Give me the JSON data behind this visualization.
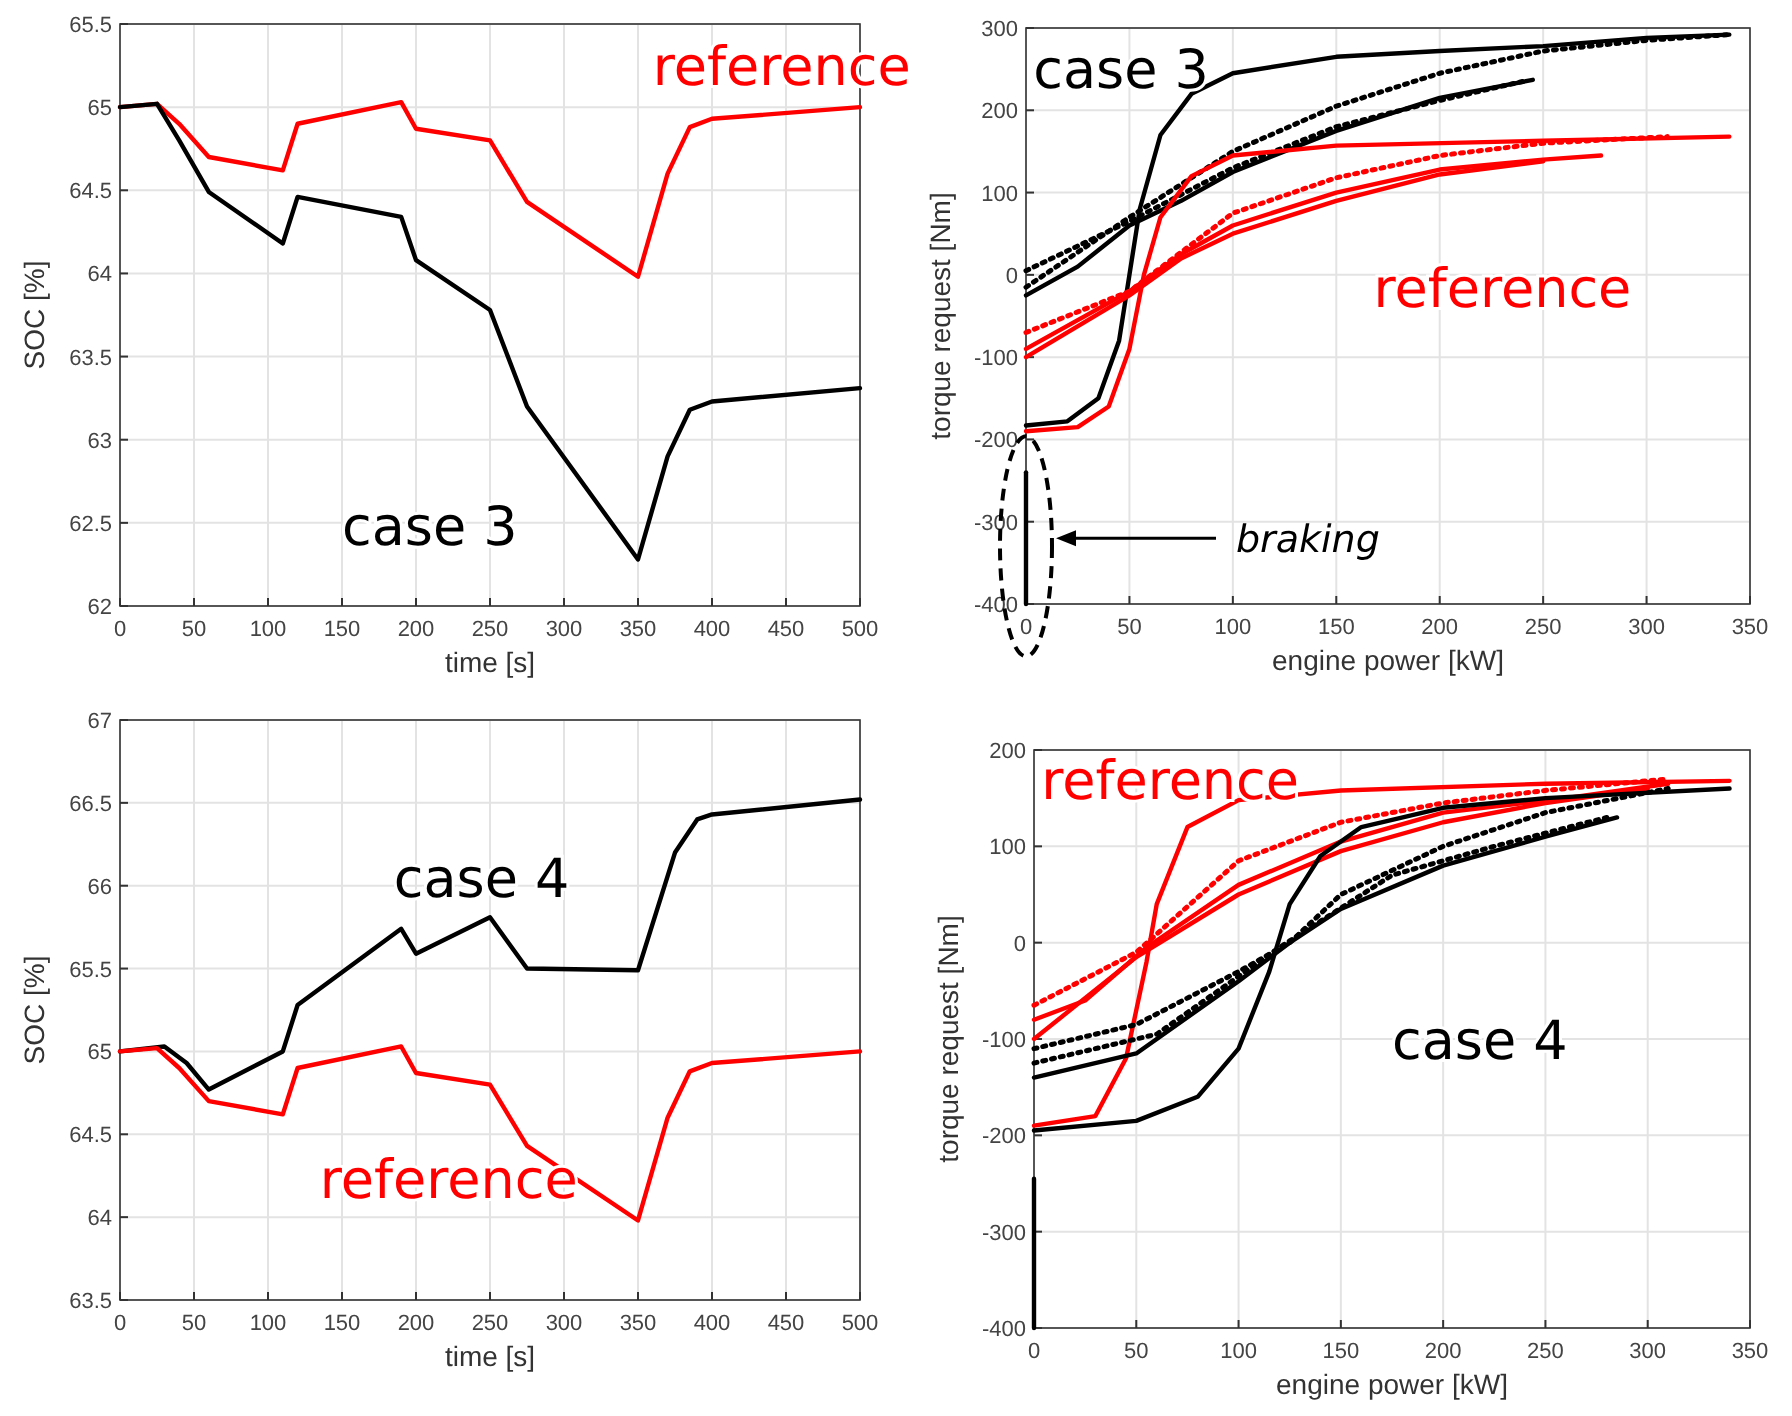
{
  "chart_data": [
    {
      "type": "line",
      "xlabel": "time [s]",
      "ylabel": "SOC [%]",
      "xlim": [
        0,
        500
      ],
      "xticks": [
        0,
        50,
        100,
        150,
        200,
        250,
        300,
        350,
        400,
        450,
        500
      ],
      "ylim": [
        62,
        65.5
      ],
      "yticks": [
        62,
        62.5,
        63,
        63.5,
        64,
        64.5,
        65,
        65.5
      ],
      "grid": true,
      "x": [
        0,
        25,
        40,
        60,
        110,
        120,
        190,
        200,
        250,
        275,
        350,
        370,
        385,
        400,
        500
      ],
      "series": [
        {
          "name": "reference",
          "color": "#ff0000",
          "values": [
            65,
            65.02,
            64.9,
            64.7,
            64.62,
            64.9,
            65.03,
            64.87,
            64.8,
            64.43,
            63.98,
            64.6,
            64.88,
            64.93,
            65
          ]
        },
        {
          "name": "case 3",
          "color": "#000000",
          "values": [
            65,
            65.02,
            64.8,
            64.49,
            64.18,
            64.46,
            64.34,
            64.08,
            63.78,
            63.2,
            62.28,
            62.9,
            63.18,
            63.23,
            63.31
          ]
        }
      ]
    },
    {
      "type": "line",
      "xlabel": "engine power [kW]",
      "ylabel": "torque request [Nm]",
      "xlim": [
        0,
        350
      ],
      "xticks": [
        0,
        50,
        100,
        150,
        200,
        250,
        300,
        350
      ],
      "ylim": [
        -400,
        300
      ],
      "yticks": [
        -400,
        -300,
        -200,
        -100,
        0,
        100,
        200,
        300
      ],
      "grid": true,
      "annotations": [
        "braking"
      ],
      "series": [
        {
          "name": "case 3",
          "color": "#000000",
          "x": [
            0,
            20,
            35,
            45,
            50,
            55,
            65,
            80,
            100,
            150,
            200,
            250,
            300,
            340
          ],
          "values": [
            -183,
            -178,
            -150,
            -80,
            0,
            80,
            170,
            220,
            245,
            265,
            272,
            278,
            288,
            292
          ]
        },
        {
          "color": "#000000",
          "x": [
            0,
            25,
            50,
            75,
            100,
            150,
            200,
            245
          ],
          "values": [
            -25,
            10,
            60,
            90,
            125,
            175,
            215,
            237
          ]
        },
        {
          "color": "#000000",
          "line_style": "dotted",
          "x": [
            0,
            50,
            100,
            150,
            200,
            250,
            300,
            340
          ],
          "values": [
            -15,
            70,
            150,
            205,
            245,
            272,
            285,
            292
          ]
        },
        {
          "color": "#000000",
          "line_style": "dotted",
          "x": [
            0,
            50,
            100,
            150,
            200,
            240
          ],
          "values": [
            5,
            65,
            130,
            180,
            212,
            235
          ]
        },
        {
          "color": "#000000",
          "x": [
            0,
            0
          ],
          "values": [
            -240,
            -400
          ]
        },
        {
          "name": "reference",
          "color": "#ff0000",
          "x": [
            0,
            25,
            40,
            50,
            57,
            65,
            80,
            100,
            150,
            250,
            340
          ],
          "values": [
            -190,
            -185,
            -160,
            -90,
            0,
            70,
            120,
            145,
            157,
            163,
            168
          ]
        },
        {
          "color": "#ff0000",
          "x": [
            0,
            25,
            50,
            75,
            100,
            150,
            200,
            250,
            278
          ],
          "values": [
            -90,
            -55,
            -20,
            25,
            60,
            100,
            128,
            140,
            145
          ]
        },
        {
          "color": "#ff0000",
          "line_style": "dotted",
          "x": [
            0,
            50,
            100,
            150,
            200,
            250,
            310
          ],
          "values": [
            -70,
            -20,
            75,
            118,
            145,
            160,
            168
          ]
        },
        {
          "color": "#ff0000",
          "x": [
            0,
            50,
            75,
            100,
            150,
            200,
            250
          ],
          "values": [
            -100,
            -25,
            20,
            50,
            90,
            122,
            138
          ]
        }
      ]
    },
    {
      "type": "line",
      "xlabel": "time [s]",
      "ylabel": "SOC [%]",
      "xlim": [
        0,
        500
      ],
      "xticks": [
        0,
        50,
        100,
        150,
        200,
        250,
        300,
        350,
        400,
        450,
        500
      ],
      "ylim": [
        63.5,
        67
      ],
      "yticks": [
        63.5,
        64,
        64.5,
        65,
        65.5,
        66,
        66.5,
        67
      ],
      "grid": true,
      "series": [
        {
          "name": "case 4",
          "color": "#000000",
          "x": [
            0,
            30,
            45,
            60,
            110,
            120,
            190,
            200,
            250,
            275,
            350,
            375,
            390,
            400,
            500
          ],
          "values": [
            65,
            65.03,
            64.93,
            64.77,
            65,
            65.28,
            65.74,
            65.59,
            65.81,
            65.5,
            65.49,
            66.2,
            66.4,
            66.43,
            66.52
          ]
        },
        {
          "name": "reference",
          "color": "#ff0000",
          "x": [
            0,
            25,
            40,
            60,
            110,
            120,
            190,
            200,
            250,
            275,
            350,
            370,
            385,
            400,
            500
          ],
          "values": [
            65,
            65.02,
            64.9,
            64.7,
            64.62,
            64.9,
            65.03,
            64.87,
            64.8,
            64.43,
            63.98,
            64.6,
            64.88,
            64.93,
            65
          ]
        }
      ]
    },
    {
      "type": "line",
      "xlabel": "engine power [kW]",
      "ylabel": "torque request [Nm]",
      "xlim": [
        0,
        350
      ],
      "xticks": [
        0,
        50,
        100,
        150,
        200,
        250,
        300,
        350
      ],
      "ylim": [
        -400,
        200
      ],
      "yticks": [
        -400,
        -300,
        -200,
        -100,
        0,
        100,
        200
      ],
      "grid": true,
      "series": [
        {
          "name": "reference",
          "color": "#ff0000",
          "x": [
            0,
            30,
            45,
            55,
            60,
            75,
            100,
            150,
            250,
            340
          ],
          "values": [
            -190,
            -180,
            -120,
            -20,
            40,
            120,
            148,
            158,
            165,
            168
          ]
        },
        {
          "color": "#ff0000",
          "x": [
            0,
            25,
            55,
            100,
            150,
            200,
            260,
            310
          ],
          "values": [
            -80,
            -60,
            -5,
            60,
            105,
            135,
            150,
            165
          ]
        },
        {
          "color": "#ff0000",
          "line_style": "dotted",
          "x": [
            0,
            50,
            100,
            150,
            200,
            250,
            310
          ],
          "values": [
            -65,
            -10,
            85,
            125,
            145,
            158,
            170
          ]
        },
        {
          "color": "#ff0000",
          "x": [
            0,
            50,
            100,
            150,
            200,
            250,
            300
          ],
          "values": [
            -100,
            -15,
            50,
            95,
            125,
            145,
            160
          ]
        },
        {
          "name": "case 4",
          "color": "#000000",
          "x": [
            0,
            50,
            80,
            100,
            115,
            125,
            140,
            160,
            200,
            250,
            340
          ],
          "values": [
            -195,
            -185,
            -160,
            -110,
            -30,
            40,
            90,
            120,
            140,
            150,
            160
          ]
        },
        {
          "color": "#000000",
          "x": [
            0,
            50,
            100,
            125,
            150,
            200,
            250,
            285
          ],
          "values": [
            -140,
            -115,
            -40,
            0,
            35,
            80,
            110,
            130
          ]
        },
        {
          "color": "#000000",
          "line_style": "dotted",
          "x": [
            0,
            50,
            100,
            125,
            150,
            200,
            250,
            310
          ],
          "values": [
            -110,
            -85,
            -30,
            0,
            50,
            100,
            135,
            160
          ]
        },
        {
          "color": "#000000",
          "line_style": "dotted",
          "x": [
            0,
            60,
            120,
            175,
            225,
            280
          ],
          "values": [
            -125,
            -95,
            -5,
            70,
            100,
            130
          ]
        },
        {
          "color": "#000000",
          "x": [
            0,
            0
          ],
          "values": [
            -245,
            -400
          ]
        }
      ]
    }
  ]
}
